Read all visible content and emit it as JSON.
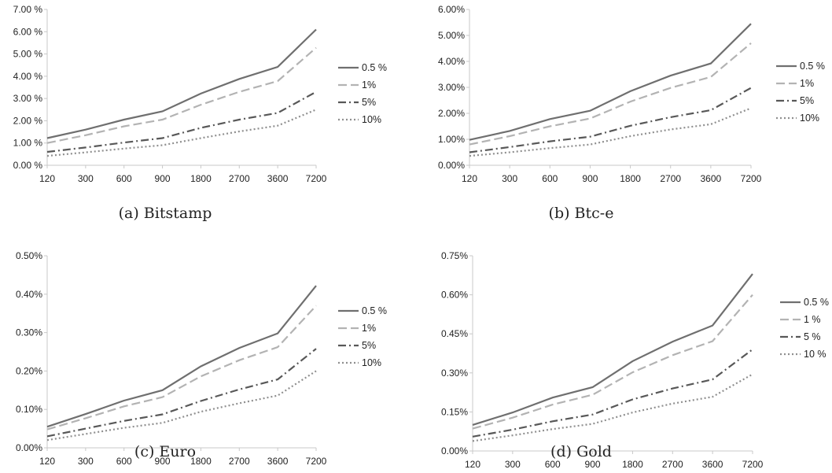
{
  "chart_data": [
    {
      "type": "line",
      "caption": "(a)  Bitstamp",
      "categories": [
        "120",
        "300",
        "600",
        "900",
        "1800",
        "2700",
        "3600",
        "7200"
      ],
      "yticks": [
        "0.00 %",
        "1.00 %",
        "2.00 %",
        "3.00 %",
        "4.00 %",
        "5.00 %",
        "6.00 %",
        "7.00 %"
      ],
      "ylim": [
        0,
        7
      ],
      "series": [
        {
          "name": "0.5 %",
          "values": [
            1.22,
            1.6,
            2.05,
            2.42,
            3.22,
            3.88,
            4.42,
            6.1
          ]
        },
        {
          "name": "1%",
          "values": [
            1.0,
            1.35,
            1.75,
            2.05,
            2.72,
            3.3,
            3.78,
            5.28
          ]
        },
        {
          "name": "5%",
          "values": [
            0.6,
            0.8,
            1.02,
            1.22,
            1.68,
            2.05,
            2.35,
            3.3
          ]
        },
        {
          "name": "10%",
          "values": [
            0.42,
            0.58,
            0.75,
            0.9,
            1.22,
            1.52,
            1.78,
            2.5
          ]
        }
      ]
    },
    {
      "type": "line",
      "caption": "(b)  Btc-e",
      "categories": [
        "120",
        "300",
        "600",
        "900",
        "1800",
        "2700",
        "3600",
        "7200"
      ],
      "yticks": [
        "0.00%",
        "1.00%",
        "2.00%",
        "3.00%",
        "4.00%",
        "5.00%",
        "6.00%"
      ],
      "ylim": [
        0,
        6
      ],
      "series": [
        {
          "name": "0.5 %",
          "values": [
            0.98,
            1.32,
            1.78,
            2.1,
            2.85,
            3.45,
            3.92,
            5.45
          ]
        },
        {
          "name": "1%",
          "values": [
            0.8,
            1.12,
            1.5,
            1.8,
            2.45,
            2.98,
            3.4,
            4.7
          ]
        },
        {
          "name": "5%",
          "values": [
            0.5,
            0.7,
            0.92,
            1.1,
            1.52,
            1.85,
            2.12,
            2.98
          ]
        },
        {
          "name": "10%",
          "values": [
            0.36,
            0.5,
            0.66,
            0.8,
            1.12,
            1.38,
            1.58,
            2.2
          ]
        }
      ]
    },
    {
      "type": "line",
      "caption": "(c)  Euro",
      "categories": [
        "120",
        "300",
        "600",
        "900",
        "1800",
        "2700",
        "3600",
        "7200"
      ],
      "yticks": [
        "0.00%",
        "0.10%",
        "0.20%",
        "0.30%",
        "0.40%",
        "0.50%"
      ],
      "ylim": [
        0,
        0.5
      ],
      "series": [
        {
          "name": "0.5 %",
          "values": [
            0.055,
            0.088,
            0.123,
            0.15,
            0.212,
            0.26,
            0.298,
            0.422
          ]
        },
        {
          "name": "1%",
          "values": [
            0.048,
            0.077,
            0.108,
            0.132,
            0.186,
            0.228,
            0.262,
            0.37
          ]
        },
        {
          "name": "5%",
          "values": [
            0.03,
            0.05,
            0.07,
            0.087,
            0.122,
            0.152,
            0.178,
            0.258
          ]
        },
        {
          "name": "10%",
          "values": [
            0.02,
            0.036,
            0.052,
            0.065,
            0.094,
            0.116,
            0.136,
            0.2
          ]
        }
      ]
    },
    {
      "type": "line",
      "caption": "(d)  Gold",
      "categories": [
        "120",
        "300",
        "600",
        "900",
        "1800",
        "2700",
        "3600",
        "7200"
      ],
      "yticks": [
        "0.00%",
        "0.15%",
        "0.30%",
        "0.45%",
        "0.60%",
        "0.75%"
      ],
      "ylim": [
        0,
        0.75
      ],
      "series": [
        {
          "name": "0.5 %",
          "values": [
            0.1,
            0.148,
            0.205,
            0.245,
            0.345,
            0.42,
            0.482,
            0.68
          ]
        },
        {
          "name": "1 %",
          "values": [
            0.086,
            0.128,
            0.178,
            0.216,
            0.302,
            0.368,
            0.422,
            0.6
          ]
        },
        {
          "name": "5 %",
          "values": [
            0.055,
            0.082,
            0.114,
            0.14,
            0.198,
            0.24,
            0.275,
            0.39
          ]
        },
        {
          "name": "10 %",
          "values": [
            0.038,
            0.06,
            0.084,
            0.104,
            0.148,
            0.182,
            0.208,
            0.295
          ]
        }
      ]
    }
  ],
  "styles": {
    "series_colors": [
      "#6f6f6f",
      "#b3b3b3",
      "#585858",
      "#8f8f8f"
    ],
    "series_dash": [
      "solid",
      "long-dash",
      "dash-dot",
      "dotted"
    ],
    "axis_color": "#c8c8c8"
  }
}
